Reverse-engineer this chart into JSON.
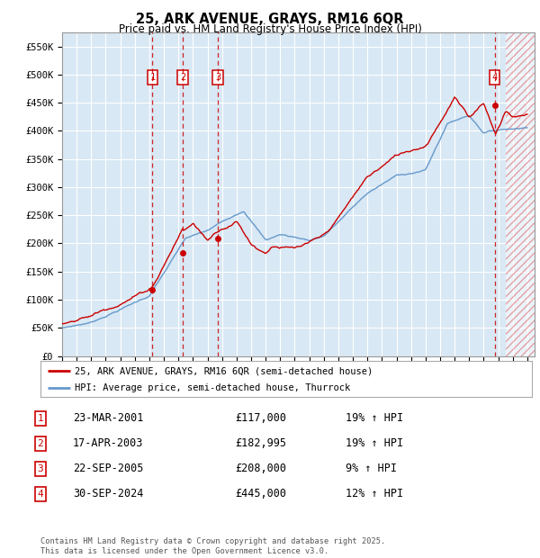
{
  "title": "25, ARK AVENUE, GRAYS, RM16 6QR",
  "subtitle": "Price paid vs. HM Land Registry's House Price Index (HPI)",
  "ylabel_ticks": [
    "£0",
    "£50K",
    "£100K",
    "£150K",
    "£200K",
    "£250K",
    "£300K",
    "£350K",
    "£400K",
    "£450K",
    "£500K",
    "£550K"
  ],
  "ytick_values": [
    0,
    50000,
    100000,
    150000,
    200000,
    250000,
    300000,
    350000,
    400000,
    450000,
    500000,
    550000
  ],
  "ylim": [
    0,
    575000
  ],
  "xlim_start": 1995.0,
  "xlim_end": 2027.5,
  "background_color": "#d8e8f4",
  "grid_color": "#ffffff",
  "sale_color": "#cc0000",
  "hpi_color": "#6699cc",
  "sale_points": [
    {
      "year": 2001.22,
      "price": 117000,
      "label": "1"
    },
    {
      "year": 2003.29,
      "price": 182995,
      "label": "2"
    },
    {
      "year": 2005.72,
      "price": 208000,
      "label": "3"
    },
    {
      "year": 2024.75,
      "price": 445000,
      "label": "4"
    }
  ],
  "vline_years": [
    2001.22,
    2003.29,
    2005.72,
    2024.75
  ],
  "hatch_start": 2025.5,
  "legend_sale_label": "25, ARK AVENUE, GRAYS, RM16 6QR (semi-detached house)",
  "legend_hpi_label": "HPI: Average price, semi-detached house, Thurrock",
  "table_rows": [
    {
      "num": "1",
      "date": "23-MAR-2001",
      "price": "£117,000",
      "hpi": "19% ↑ HPI"
    },
    {
      "num": "2",
      "date": "17-APR-2003",
      "price": "£182,995",
      "hpi": "19% ↑ HPI"
    },
    {
      "num": "3",
      "date": "22-SEP-2005",
      "price": "£208,000",
      "hpi": "9% ↑ HPI"
    },
    {
      "num": "4",
      "date": "30-SEP-2024",
      "price": "£445,000",
      "hpi": "12% ↑ HPI"
    }
  ],
  "footer": "Contains HM Land Registry data © Crown copyright and database right 2025.\nThis data is licensed under the Open Government Licence v3.0."
}
